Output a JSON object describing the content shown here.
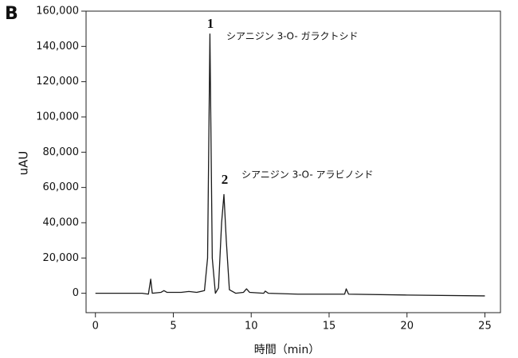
{
  "chart_data": {
    "type": "line",
    "panel_label": "B",
    "x_label": "時間（min）",
    "y_label": "uAU",
    "annotations": [
      "1",
      "シアニジン 3-O- ガラクトシド",
      "2",
      "シアニジン 3-O- アラビノシド"
    ],
    "x": [
      0,
      3.0,
      3.4,
      3.55,
      3.65,
      4.2,
      4.4,
      4.6,
      5.5,
      6.0,
      6.5,
      7.0,
      7.2,
      7.35,
      7.5,
      7.7,
      7.9,
      8.1,
      8.25,
      8.4,
      8.6,
      9.0,
      9.5,
      9.7,
      9.9,
      10.8,
      10.9,
      11.1,
      13,
      16.0,
      16.1,
      16.25,
      20,
      25
    ],
    "values": [
      0,
      0,
      -500,
      8000,
      0,
      500,
      1500,
      500,
      500,
      1000,
      500,
      1500,
      20000,
      147000,
      20000,
      0,
      3000,
      40000,
      56000,
      30000,
      2000,
      0,
      500,
      2500,
      500,
      0,
      1200,
      0,
      -500,
      -500,
      2500,
      -500,
      -1000,
      -1500
    ],
    "color": "#1a1a1a",
    "xlim": [
      -0.6,
      26
    ],
    "xticks": [
      0,
      5,
      10,
      15,
      20,
      25
    ],
    "ylim": [
      -11000,
      160000
    ],
    "yticks": [
      0,
      {
        "value": 20000,
        "label": "20,000"
      },
      {
        "value": 40000,
        "label": "40,000"
      },
      {
        "value": 60000,
        "label": "60,000"
      },
      {
        "value": 80000,
        "label": "80,000"
      },
      {
        "value": 100000,
        "label": "100,000"
      },
      {
        "value": 120000,
        "label": "120,000"
      },
      {
        "value": 140000,
        "label": "140,000"
      },
      {
        "value": 160000,
        "label": "160,000"
      }
    ]
  }
}
